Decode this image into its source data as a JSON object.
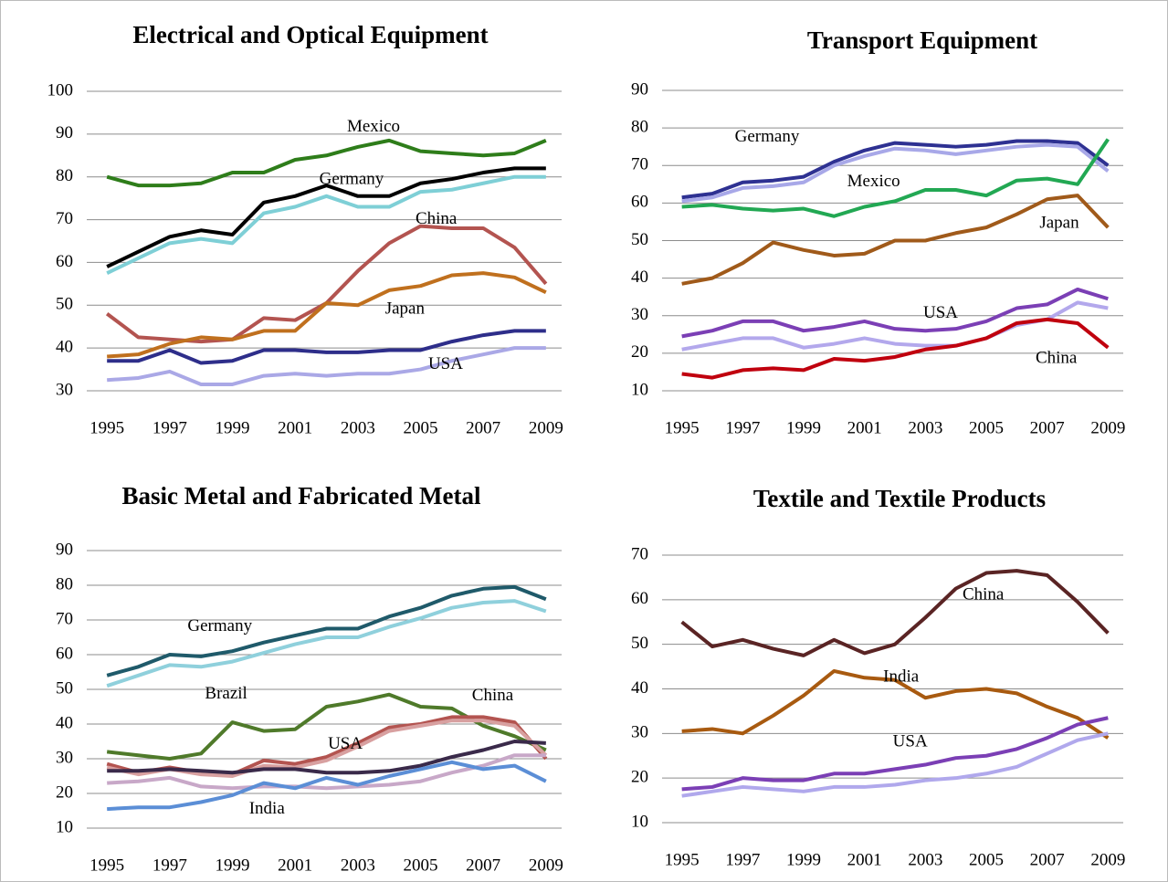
{
  "chart_data": [
    {
      "type": "line",
      "title": "Electrical and Optical Equipment",
      "x": [
        1995,
        1996,
        1997,
        1998,
        1999,
        2000,
        2001,
        2002,
        2003,
        2004,
        2005,
        2006,
        2007,
        2008,
        2009
      ],
      "xlim": [
        1995,
        2009
      ],
      "xticks": [
        1995,
        1997,
        1999,
        2001,
        2003,
        2005,
        2007,
        2009
      ],
      "ylim": [
        30,
        100
      ],
      "yticks": [
        30,
        40,
        50,
        60,
        70,
        80,
        90,
        100
      ],
      "grid": true,
      "series": [
        {
          "name": "Mexico",
          "color": "#2e7d1a",
          "values": [
            80,
            78,
            78,
            78.5,
            81,
            81,
            84,
            85,
            87,
            88.5,
            86,
            85.5,
            85,
            85.5,
            88.5
          ]
        },
        {
          "name": "Germany",
          "color": "#000000",
          "values": [
            59,
            62.5,
            66,
            67.5,
            66.5,
            74,
            75.5,
            78,
            75.5,
            75.5,
            78.5,
            79.5,
            81,
            82,
            82
          ]
        },
        {
          "color": "#7ecfd6",
          "values": [
            57.5,
            61,
            64.5,
            65.5,
            64.5,
            71.5,
            73,
            75.5,
            73,
            73,
            76.5,
            77,
            78.5,
            80,
            80
          ]
        },
        {
          "name": "China",
          "color": "#b35450",
          "values": [
            48,
            42.5,
            42,
            41.5,
            42,
            47,
            46.5,
            50.5,
            58,
            64.5,
            68.5,
            68,
            68,
            63.5,
            55
          ]
        },
        {
          "name": "Japan",
          "color": "#c0701e",
          "values": [
            38,
            38.5,
            41,
            42.5,
            42,
            44,
            44,
            50.5,
            50,
            53.5,
            54.5,
            57,
            57.5,
            56.5,
            53
          ]
        },
        {
          "name": "USA",
          "color": "#2e2e8a",
          "values": [
            37,
            37,
            39.5,
            36.5,
            37,
            39.5,
            39.5,
            39,
            39,
            39.5,
            39.5,
            41.5,
            43,
            44,
            44
          ]
        },
        {
          "color": "#aaa8e6",
          "values": [
            32.5,
            33,
            34.5,
            31.5,
            31.5,
            33.5,
            34,
            33.5,
            34,
            34,
            35,
            37,
            38.5,
            40,
            40
          ]
        }
      ]
    },
    {
      "type": "line",
      "title": "Transport Equipment",
      "x": [
        1995,
        1996,
        1997,
        1998,
        1999,
        2000,
        2001,
        2002,
        2003,
        2004,
        2005,
        2006,
        2007,
        2008,
        2009
      ],
      "xlim": [
        1995,
        2009
      ],
      "xticks": [
        1995,
        1997,
        1999,
        2001,
        2003,
        2005,
        2007,
        2009
      ],
      "ylim": [
        10,
        90
      ],
      "yticks": [
        10,
        20,
        30,
        40,
        50,
        60,
        70,
        80,
        90
      ],
      "grid": true,
      "series": [
        {
          "name": "Germany",
          "color": "#2e3192",
          "values": [
            61.5,
            62.5,
            65.5,
            66,
            67,
            71,
            74,
            76,
            75.5,
            75,
            75.5,
            76.5,
            76.5,
            76,
            70
          ]
        },
        {
          "color": "#a8a8e8",
          "values": [
            60.5,
            61.5,
            64,
            64.5,
            65.5,
            70,
            72.5,
            74.5,
            74,
            73,
            74,
            75,
            75.5,
            75,
            68.5
          ]
        },
        {
          "name": "Mexico",
          "color": "#22a853",
          "values": [
            59,
            59.5,
            58.5,
            58,
            58.5,
            56.5,
            59,
            60.5,
            63.5,
            63.5,
            62,
            66,
            66.5,
            65,
            77
          ]
        },
        {
          "name": "Japan",
          "color": "#a05a1a",
          "values": [
            38.5,
            40,
            44,
            49.5,
            47.5,
            46,
            46.5,
            50,
            50,
            52,
            53.5,
            57,
            61,
            62,
            53.5
          ]
        },
        {
          "name": "USA",
          "color": "#7b3fb5",
          "values": [
            24.5,
            26,
            28.5,
            28.5,
            26,
            27,
            28.5,
            26.5,
            26,
            26.5,
            28.5,
            32,
            33,
            37,
            34.5
          ]
        },
        {
          "color": "#b3a8ec",
          "values": [
            21,
            22.5,
            24,
            24,
            21.5,
            22.5,
            24,
            22.5,
            22,
            22,
            24,
            27.5,
            29,
            33.5,
            32
          ]
        },
        {
          "name": "China",
          "color": "#c0000e",
          "values": [
            14.5,
            13.5,
            15.5,
            16,
            15.5,
            18.5,
            18,
            19,
            21,
            22,
            24,
            28,
            29,
            28,
            21.5
          ]
        }
      ]
    },
    {
      "type": "line",
      "title": "Basic Metal and Fabricated Metal",
      "x": [
        1995,
        1996,
        1997,
        1998,
        1999,
        2000,
        2001,
        2002,
        2003,
        2004,
        2005,
        2006,
        2007,
        2008,
        2009
      ],
      "xlim": [
        1995,
        2009
      ],
      "xticks": [
        1995,
        1997,
        1999,
        2001,
        2003,
        2005,
        2007,
        2009
      ],
      "ylim": [
        10,
        90
      ],
      "yticks": [
        10,
        20,
        30,
        40,
        50,
        60,
        70,
        80,
        90
      ],
      "grid": true,
      "series": [
        {
          "name": "Germany",
          "color": "#1f5a6a",
          "values": [
            54,
            56.5,
            60,
            59.5,
            61,
            63.5,
            65.5,
            67.5,
            67.5,
            71,
            73.5,
            77,
            79,
            79.5,
            76
          ]
        },
        {
          "color": "#8fd0dc",
          "values": [
            51,
            54,
            57,
            56.5,
            58,
            60.5,
            63,
            65,
            65,
            68,
            70.5,
            73.5,
            75,
            75.5,
            72.5
          ]
        },
        {
          "name": "Brazil",
          "color": "#4f7a2a",
          "values": [
            32,
            31,
            30,
            31.5,
            40.5,
            38,
            38.5,
            45,
            46.5,
            48.5,
            45,
            44.5,
            39.5,
            36.5,
            32.5
          ]
        },
        {
          "name": "China",
          "color": "#b35450",
          "values": [
            28.5,
            26,
            27.5,
            26,
            25.5,
            29.5,
            28.5,
            30.5,
            34.5,
            39,
            40,
            42,
            42,
            40.5,
            30
          ]
        },
        {
          "color": "#d8a0a0",
          "values": [
            27.5,
            25.5,
            27,
            25.5,
            25,
            28,
            27.5,
            29.5,
            33.5,
            38,
            39.5,
            41,
            41,
            39.5,
            31
          ]
        },
        {
          "name": "USA",
          "color": "#3a2a4a",
          "values": [
            26.5,
            26.5,
            27,
            26.5,
            26,
            27,
            27,
            26,
            26,
            26.5,
            28,
            30.5,
            32.5,
            35,
            34.5
          ]
        },
        {
          "color": "#c8a8c8",
          "values": [
            23,
            23.5,
            24.5,
            22,
            21.5,
            22,
            22,
            21.5,
            22,
            22.5,
            23.5,
            26,
            28,
            31,
            31
          ]
        },
        {
          "name": "India",
          "color": "#5b8ed6",
          "values": [
            15.5,
            16,
            16,
            17.5,
            19.5,
            23,
            21.5,
            24.5,
            22.5,
            25,
            27,
            29,
            27,
            28,
            23.5
          ]
        }
      ]
    },
    {
      "type": "line",
      "title": "Textile and Textile Products",
      "x": [
        1995,
        1996,
        1997,
        1998,
        1999,
        2000,
        2001,
        2002,
        2003,
        2004,
        2005,
        2006,
        2007,
        2008,
        2009
      ],
      "xlim": [
        1995,
        2009
      ],
      "xticks": [
        1995,
        1997,
        1999,
        2001,
        2003,
        2005,
        2007,
        2009
      ],
      "ylim": [
        10,
        70
      ],
      "yticks": [
        10,
        20,
        30,
        40,
        50,
        60,
        70
      ],
      "grid": true,
      "series": [
        {
          "name": "China",
          "color": "#5a2424",
          "values": [
            55,
            49.5,
            51,
            49,
            47.5,
            51,
            48,
            50,
            56,
            62.5,
            66,
            66.5,
            65.5,
            59.5,
            52.5
          ]
        },
        {
          "name": "India",
          "color": "#a85a10",
          "values": [
            30.5,
            31,
            30,
            34,
            38.5,
            44,
            42.5,
            42,
            38,
            39.5,
            40,
            39,
            36,
            33.5,
            29
          ]
        },
        {
          "name": "USA",
          "color": "#7b3fb5",
          "values": [
            17.5,
            18,
            20,
            19.5,
            19.5,
            21,
            21,
            22,
            23,
            24.5,
            25,
            26.5,
            29,
            32,
            33.5
          ]
        },
        {
          "color": "#b0a8ec",
          "values": [
            16,
            17,
            18,
            17.5,
            17,
            18,
            18,
            18.5,
            19.5,
            20,
            21,
            22.5,
            25.5,
            28.5,
            30
          ]
        }
      ]
    }
  ]
}
